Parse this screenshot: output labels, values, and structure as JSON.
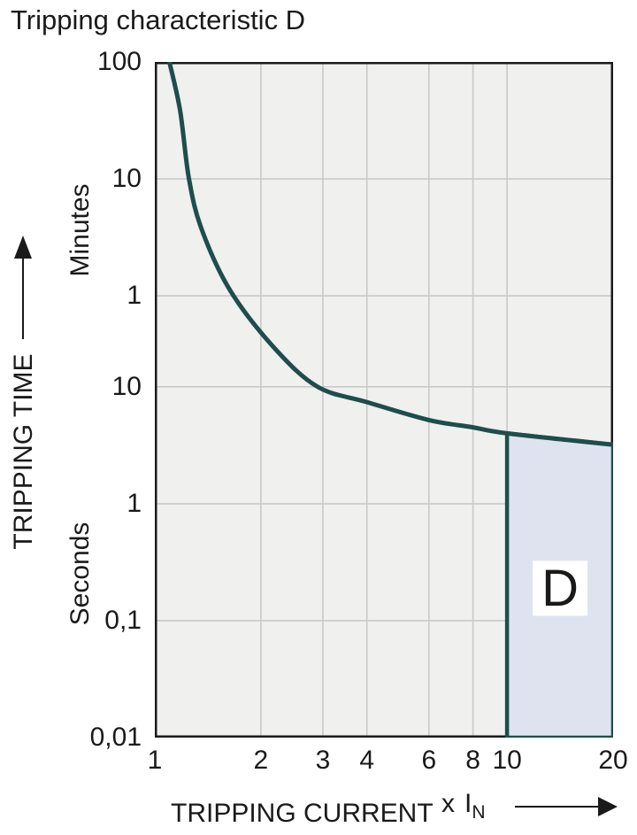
{
  "title": "Tripping characteristic D",
  "y_axis": {
    "title": "TRIPPING TIME",
    "unit_top": "Minutes",
    "unit_bottom": "Seconds"
  },
  "x_axis": {
    "title": "TRIPPING CURRENT",
    "multiplier_x": "x",
    "multiplier_base": "I",
    "multiplier_sub": "N"
  },
  "chart_data": {
    "type": "line",
    "title": "Tripping characteristic D",
    "x": {
      "scale": "log",
      "min": 1,
      "max": 20,
      "label": "TRIPPING CURRENT",
      "unit": "x IN",
      "ticks": [
        {
          "label": "1",
          "value": 1
        },
        {
          "label": "2",
          "value": 2
        },
        {
          "label": "3",
          "value": 3
        },
        {
          "label": "4",
          "value": 4
        },
        {
          "label": "6",
          "value": 6
        },
        {
          "label": "8",
          "value": 8
        },
        {
          "label": "10",
          "value": 10
        },
        {
          "label": "20",
          "value": 20
        }
      ]
    },
    "y": {
      "scale": "log",
      "label": "TRIPPING TIME",
      "min_seconds": 0.01,
      "max_seconds": 6000,
      "minute_ticks": [
        {
          "label": "100",
          "seconds": 6000
        },
        {
          "label": "10",
          "seconds": 600
        },
        {
          "label": "1",
          "seconds": 60
        }
      ],
      "second_ticks": [
        {
          "label": "10",
          "seconds": 10
        },
        {
          "label": "1",
          "seconds": 1
        },
        {
          "label": "0,1",
          "seconds": 0.1
        },
        {
          "label": "0,01",
          "seconds": 0.01
        }
      ]
    },
    "grid": true,
    "series": [
      {
        "name": "tripping-curve",
        "points": [
          [
            1.1,
            6000
          ],
          [
            1.18,
            2300
          ],
          [
            1.25,
            600
          ],
          [
            1.36,
            220
          ],
          [
            1.64,
            66
          ],
          [
            2.2,
            21
          ],
          [
            2.9,
            10
          ],
          [
            4.0,
            7.4
          ],
          [
            6.0,
            5.2
          ],
          [
            8.0,
            4.5
          ],
          [
            10,
            4.0
          ],
          [
            20,
            3.2
          ]
        ]
      }
    ],
    "region": {
      "label": "D",
      "x_min": 10,
      "x_max": 20,
      "t_bottom": 0.01,
      "t_top_at_x_min": 4.0,
      "t_top_at_x_max": 3.2
    },
    "colors": {
      "curve": "#1d4e4c",
      "region_fill": "#dfe3f0",
      "region_border": "#1d4e4c",
      "plot_bg": "#f0f0ee",
      "grid": "#c9c9cb",
      "frame": "#1a1a1a",
      "text": "#1a1a1a",
      "label_box": "#ffffff"
    }
  }
}
